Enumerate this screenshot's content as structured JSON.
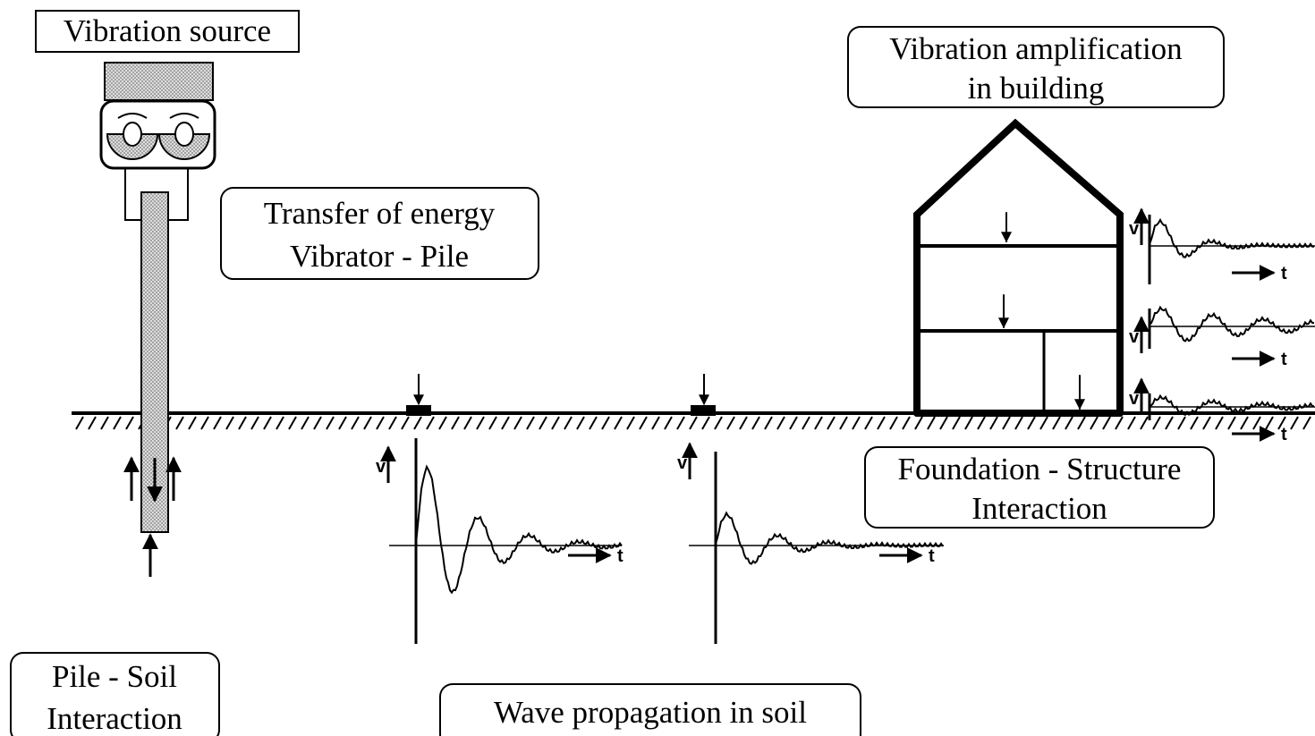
{
  "labels": {
    "vibration_source": "Vibration source",
    "transfer_of_energy": [
      "Transfer of energy",
      "Vibrator - Pile"
    ],
    "vibration_amplification": [
      "Vibration amplification",
      "in building"
    ],
    "foundation_structure": [
      "Foundation - Structure",
      "Interaction"
    ],
    "pile_soil": [
      "Pile - Soil",
      "Interaction"
    ],
    "wave_propagation": "Wave propagation in soil"
  },
  "waveforms": [
    {
      "y_label": "v",
      "x_label": "t"
    },
    {
      "y_label": "v",
      "x_label": "t"
    },
    {
      "y_label": "v",
      "x_label": "t"
    },
    {
      "y_label": "v",
      "x_label": "t"
    },
    {
      "y_label": "v",
      "x_label": "t"
    }
  ]
}
